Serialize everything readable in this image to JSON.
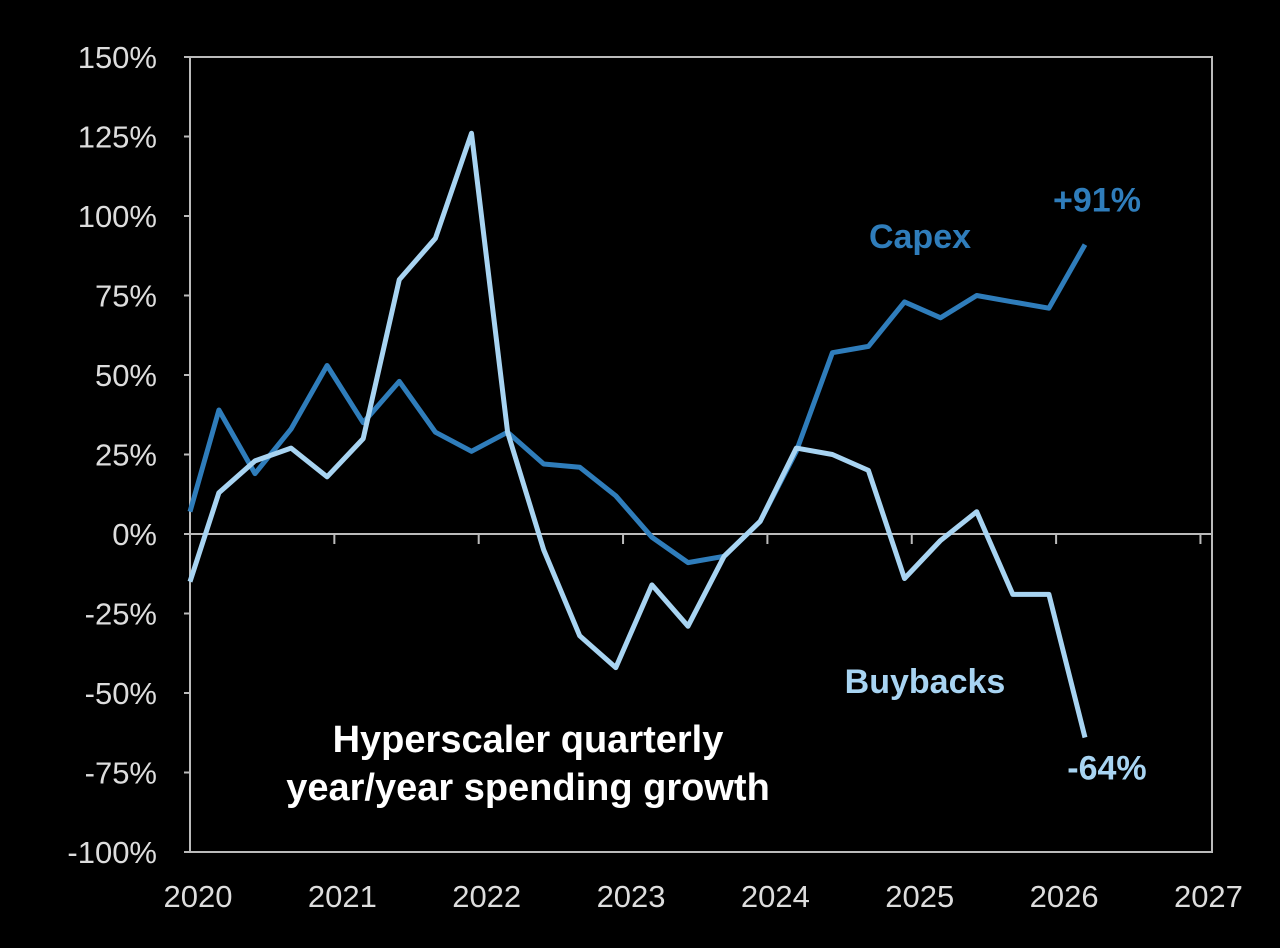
{
  "chart_data": {
    "type": "line",
    "title": [
      "Hyperscaler quarterly",
      "year/year spending growth"
    ],
    "x": [
      2020,
      2020.2,
      2020.45,
      2020.7,
      2020.95,
      2021.2,
      2021.45,
      2021.7,
      2021.95,
      2022.2,
      2022.45,
      2022.7,
      2022.95,
      2023.2,
      2023.45,
      2023.7,
      2023.95,
      2024.2,
      2024.45,
      2024.7,
      2024.95,
      2025.2,
      2025.45,
      2025.7,
      2025.95,
      2026.2
    ],
    "series": [
      {
        "name": "Capex",
        "color": "#2f7dbb",
        "values": [
          7,
          39,
          19,
          33,
          53,
          35,
          48,
          32,
          26,
          32,
          22,
          21,
          12,
          -1,
          -9,
          -7,
          4,
          26,
          57,
          59,
          73,
          68,
          75,
          73,
          71,
          91
        ],
        "value_labels": [
          null,
          null,
          null,
          null,
          null,
          null,
          null,
          null,
          null,
          null,
          null,
          null,
          null,
          null,
          null,
          null,
          null,
          null,
          null,
          null,
          null,
          null,
          null,
          null,
          null,
          "+91%"
        ]
      },
      {
        "name": "Buybacks",
        "color": "#a8d4f2",
        "values": [
          -15,
          13,
          23,
          27,
          18,
          30,
          80,
          93,
          126,
          32,
          -5,
          -32,
          -42,
          -16,
          -29,
          -7,
          4,
          27,
          25,
          20,
          -14,
          -2,
          7,
          -19,
          -19,
          -64
        ],
        "value_labels": [
          null,
          null,
          null,
          null,
          null,
          null,
          null,
          null,
          null,
          null,
          null,
          null,
          null,
          null,
          null,
          null,
          null,
          null,
          null,
          null,
          null,
          null,
          null,
          null,
          null,
          "-64%"
        ]
      }
    ],
    "xlim": [
      2020,
      2027.08
    ],
    "xticks": [
      2020,
      2021,
      2022,
      2023,
      2024,
      2025,
      2026,
      2027
    ],
    "ylim": [
      -100,
      150
    ],
    "yticks": [
      {
        "value": -100,
        "label": "-100%"
      },
      {
        "value": -75,
        "label": "-75%"
      },
      {
        "value": -50,
        "label": "-50%"
      },
      {
        "value": -25,
        "label": "-25%"
      },
      {
        "value": 0,
        "label": "0%"
      },
      {
        "value": 25,
        "label": "25%"
      },
      {
        "value": 50,
        "label": "50%"
      },
      {
        "value": 75,
        "label": "75%"
      },
      {
        "value": 100,
        "label": "100%"
      },
      {
        "value": 125,
        "label": "125%"
      },
      {
        "value": 150,
        "label": "150%"
      }
    ]
  }
}
